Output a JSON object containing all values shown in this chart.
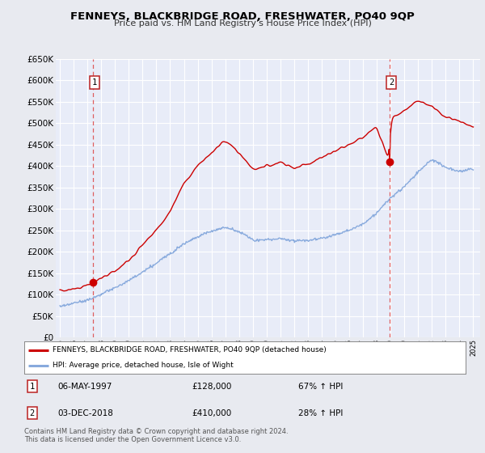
{
  "title": "FENNEYS, BLACKBRIDGE ROAD, FRESHWATER, PO40 9QP",
  "subtitle": "Price paid vs. HM Land Registry's House Price Index (HPI)",
  "legend_line1": "FENNEYS, BLACKBRIDGE ROAD, FRESHWATER, PO40 9QP (detached house)",
  "legend_line2": "HPI: Average price, detached house, Isle of Wight",
  "sale1_date": 1997.37,
  "sale1_price": 128000,
  "sale1_label": "1",
  "sale1_text": "06-MAY-1997",
  "sale1_amount": "£128,000",
  "sale1_hpi": "67% ↑ HPI",
  "sale2_date": 2018.92,
  "sale2_price": 410000,
  "sale2_label": "2",
  "sale2_text": "03-DEC-2018",
  "sale2_amount": "£410,000",
  "sale2_hpi": "28% ↑ HPI",
  "footer1": "Contains HM Land Registry data © Crown copyright and database right 2024.",
  "footer2": "This data is licensed under the Open Government Licence v3.0.",
  "bg_color": "#e8eaf0",
  "plot_bg_color": "#e8ecf8",
  "red_line_color": "#cc0000",
  "blue_line_color": "#88aadd",
  "vline_color": "#dd4444",
  "ylim": [
    0,
    650000
  ],
  "xlim": [
    1994.7,
    2025.5
  ],
  "hpi_anchors_x": [
    1995,
    1996,
    1997,
    1998,
    1999,
    2000,
    2001,
    2002,
    2003,
    2004,
    2005,
    2006,
    2007,
    2008,
    2009,
    2010,
    2011,
    2012,
    2013,
    2014,
    2015,
    2016,
    2017,
    2018,
    2019,
    2020,
    2021,
    2022,
    2023,
    2024,
    2025
  ],
  "hpi_anchors_y": [
    72000,
    80000,
    88000,
    100000,
    115000,
    132000,
    152000,
    172000,
    195000,
    218000,
    235000,
    248000,
    258000,
    248000,
    228000,
    230000,
    232000,
    228000,
    230000,
    235000,
    245000,
    255000,
    270000,
    295000,
    330000,
    355000,
    390000,
    420000,
    400000,
    390000,
    395000
  ],
  "prop_anchors_x": [
    1995,
    1996,
    1997,
    1997.37,
    1998,
    1999,
    2000,
    2001,
    2002,
    2003,
    2004,
    2005,
    2006,
    2007,
    2008,
    2009,
    2010,
    2011,
    2012,
    2013,
    2014,
    2015,
    2016,
    2017,
    2018,
    2018.92,
    2019,
    2020,
    2021,
    2022,
    2023,
    2024,
    2025
  ],
  "prop_anchors_y": [
    108000,
    113000,
    122000,
    128000,
    138000,
    155000,
    180000,
    215000,
    250000,
    295000,
    360000,
    400000,
    430000,
    460000,
    430000,
    390000,
    400000,
    410000,
    395000,
    405000,
    420000,
    435000,
    450000,
    470000,
    490000,
    410000,
    510000,
    530000,
    555000,
    540000,
    515000,
    505000,
    490000
  ]
}
